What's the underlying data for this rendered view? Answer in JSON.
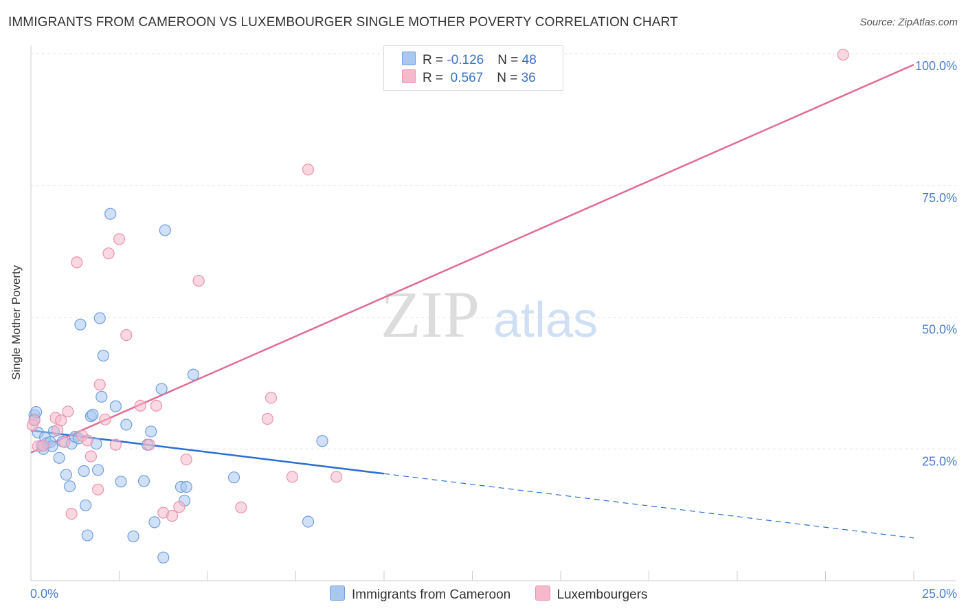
{
  "title": "IMMIGRANTS FROM CAMEROON VS LUXEMBOURGER SINGLE MOTHER POVERTY CORRELATION CHART",
  "source": "Source: ZipAtlas.com",
  "watermark": {
    "zip": "ZIP",
    "atlas": "atlas"
  },
  "legend": {
    "rows": [
      {
        "r_label": "R = ",
        "r_value": "-0.126",
        "n_label": "N = ",
        "n_value": "48"
      },
      {
        "r_label": "R = ",
        "r_value": " 0.567",
        "n_label": "N = ",
        "n_value": "36"
      }
    ]
  },
  "colors": {
    "blue_fill": "#a9c8f0",
    "blue_stroke": "#6f9fdc",
    "blue_line": "#2a6fd1",
    "pink_fill": "#f6b8cb",
    "pink_stroke": "#eb93ae",
    "pink_line": "#e06b94",
    "axis_text": "#4a7cc9",
    "grid": "#e2e2e2"
  },
  "chart_data": {
    "type": "scatter",
    "title": "IMMIGRANTS FROM CAMEROON VS LUXEMBOURGER SINGLE MOTHER POVERTY CORRELATION CHART",
    "xlabel": "",
    "ylabel": "Single Mother Poverty",
    "xlim": [
      0,
      25
    ],
    "ylim": [
      0,
      100
    ],
    "x_tick_labels": [
      "0.0%",
      "25.0%"
    ],
    "y_ticks": [
      25,
      50,
      75,
      100
    ],
    "y_tick_labels": [
      "25.0%",
      "50.0%",
      "75.0%",
      "100.0%"
    ],
    "grid": true,
    "legend_position": "top-center",
    "series": [
      {
        "name": "Immigrants from Cameroon",
        "color": "#a9c8f0",
        "points": [
          {
            "x": 0.1,
            "y": 31.4
          },
          {
            "x": 0.1,
            "y": 30.6
          },
          {
            "x": 0.2,
            "y": 28.1
          },
          {
            "x": 0.3,
            "y": 25.6
          },
          {
            "x": 0.35,
            "y": 25.0
          },
          {
            "x": 0.4,
            "y": 27.2
          },
          {
            "x": 0.45,
            "y": 26.1
          },
          {
            "x": 0.55,
            "y": 26.3
          },
          {
            "x": 0.6,
            "y": 25.5
          },
          {
            "x": 0.65,
            "y": 28.3
          },
          {
            "x": 0.8,
            "y": 23.3
          },
          {
            "x": 0.9,
            "y": 26.4
          },
          {
            "x": 1.0,
            "y": 20.1
          },
          {
            "x": 1.1,
            "y": 17.9
          },
          {
            "x": 1.15,
            "y": 26.0
          },
          {
            "x": 1.25,
            "y": 27.3
          },
          {
            "x": 1.35,
            "y": 27.0
          },
          {
            "x": 1.4,
            "y": 48.6
          },
          {
            "x": 1.5,
            "y": 20.8
          },
          {
            "x": 1.55,
            "y": 14.3
          },
          {
            "x": 1.6,
            "y": 8.6
          },
          {
            "x": 1.7,
            "y": 31.2
          },
          {
            "x": 1.75,
            "y": 31.5
          },
          {
            "x": 1.85,
            "y": 26.0
          },
          {
            "x": 1.9,
            "y": 21.0
          },
          {
            "x": 1.95,
            "y": 49.8
          },
          {
            "x": 2.0,
            "y": 34.9
          },
          {
            "x": 2.05,
            "y": 42.7
          },
          {
            "x": 2.25,
            "y": 69.6
          },
          {
            "x": 2.4,
            "y": 33.1
          },
          {
            "x": 2.55,
            "y": 18.8
          },
          {
            "x": 2.7,
            "y": 29.6
          },
          {
            "x": 2.9,
            "y": 8.4
          },
          {
            "x": 3.2,
            "y": 18.9
          },
          {
            "x": 3.3,
            "y": 25.8
          },
          {
            "x": 3.4,
            "y": 28.3
          },
          {
            "x": 3.5,
            "y": 11.1
          },
          {
            "x": 3.7,
            "y": 36.4
          },
          {
            "x": 3.75,
            "y": 4.4
          },
          {
            "x": 3.8,
            "y": 66.5
          },
          {
            "x": 4.25,
            "y": 17.8
          },
          {
            "x": 4.35,
            "y": 15.2
          },
          {
            "x": 4.4,
            "y": 17.8
          },
          {
            "x": 4.6,
            "y": 39.1
          },
          {
            "x": 5.75,
            "y": 19.6
          },
          {
            "x": 7.85,
            "y": 11.2
          },
          {
            "x": 8.25,
            "y": 26.5
          },
          {
            "x": 0.15,
            "y": 32.0
          }
        ]
      },
      {
        "name": "Luxembourgers",
        "color": "#f6b8cb",
        "points": [
          {
            "x": 0.05,
            "y": 29.5
          },
          {
            "x": 0.1,
            "y": 30.4
          },
          {
            "x": 0.2,
            "y": 25.5
          },
          {
            "x": 0.35,
            "y": 25.6
          },
          {
            "x": 0.7,
            "y": 30.9
          },
          {
            "x": 0.75,
            "y": 28.6
          },
          {
            "x": 0.85,
            "y": 30.4
          },
          {
            "x": 0.95,
            "y": 26.3
          },
          {
            "x": 1.05,
            "y": 32.1
          },
          {
            "x": 1.15,
            "y": 12.7
          },
          {
            "x": 1.3,
            "y": 60.4
          },
          {
            "x": 1.45,
            "y": 27.5
          },
          {
            "x": 1.6,
            "y": 26.6
          },
          {
            "x": 1.7,
            "y": 23.6
          },
          {
            "x": 1.9,
            "y": 17.3
          },
          {
            "x": 1.95,
            "y": 37.2
          },
          {
            "x": 2.1,
            "y": 30.6
          },
          {
            "x": 2.2,
            "y": 62.1
          },
          {
            "x": 2.4,
            "y": 25.8
          },
          {
            "x": 2.5,
            "y": 64.8
          },
          {
            "x": 2.7,
            "y": 46.6
          },
          {
            "x": 3.1,
            "y": 33.2
          },
          {
            "x": 3.35,
            "y": 25.8
          },
          {
            "x": 3.55,
            "y": 33.2
          },
          {
            "x": 3.75,
            "y": 12.9
          },
          {
            "x": 4.0,
            "y": 12.3
          },
          {
            "x": 4.2,
            "y": 14.0
          },
          {
            "x": 4.4,
            "y": 23.0
          },
          {
            "x": 4.75,
            "y": 56.9
          },
          {
            "x": 5.95,
            "y": 13.9
          },
          {
            "x": 6.7,
            "y": 30.7
          },
          {
            "x": 6.8,
            "y": 34.7
          },
          {
            "x": 7.4,
            "y": 19.7
          },
          {
            "x": 7.85,
            "y": 78.0
          },
          {
            "x": 8.65,
            "y": 19.7
          },
          {
            "x": 23.0,
            "y": 99.8
          }
        ]
      }
    ],
    "trend_lines": [
      {
        "series": "Immigrants from Cameroon",
        "x": [
          0,
          10
        ],
        "y": [
          28.5,
          20.3
        ],
        "dashed_extension": {
          "x": [
            10,
            25
          ],
          "y": [
            20.3,
            8.1
          ]
        }
      },
      {
        "series": "Luxembourgers",
        "x": [
          0,
          25
        ],
        "y": [
          24.3,
          97.9
        ]
      }
    ]
  }
}
